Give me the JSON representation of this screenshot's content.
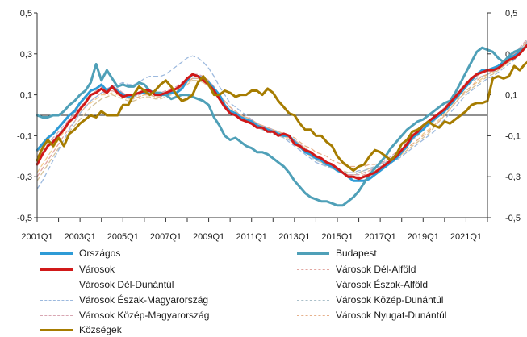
{
  "chart_data": {
    "type": "line",
    "title": "",
    "xlabel": "",
    "ylabel": "",
    "ylim": [
      -0.5,
      0.5
    ],
    "y_ticks": [
      "0,5",
      "0,3",
      "0,1",
      "-0,1",
      "-0,3",
      "-0,5"
    ],
    "y_tick_values": [
      0.5,
      0.3,
      0.1,
      -0.1,
      -0.3,
      -0.5
    ],
    "x_tick_labels": [
      "2001Q1",
      "2003Q1",
      "2005Q1",
      "2007Q1",
      "2009Q1",
      "2011Q1",
      "2013Q1",
      "2015Q1",
      "2017Q1",
      "2019Q1",
      "2021Q1"
    ],
    "x_start": "2001Q1",
    "x_end": "2022Q1",
    "grid": false,
    "legend_position": "bottom",
    "series": [
      {
        "name": "Országos",
        "color": "#2E9BD6",
        "style": "solid",
        "bold": true,
        "values": [
          -0.17,
          -0.14,
          -0.11,
          -0.09,
          -0.06,
          -0.03,
          0.0,
          0.02,
          0.06,
          0.09,
          0.12,
          0.13,
          0.15,
          0.12,
          0.14,
          0.12,
          0.1,
          0.09,
          0.1,
          0.11,
          0.11,
          0.12,
          0.11,
          0.1,
          0.1,
          0.11,
          0.11,
          0.13,
          0.17,
          0.2,
          0.19,
          0.18,
          0.16,
          0.13,
          0.1,
          0.05,
          0.02,
          0.01,
          -0.01,
          -0.02,
          -0.03,
          -0.05,
          -0.06,
          -0.07,
          -0.08,
          -0.09,
          -0.1,
          -0.1,
          -0.13,
          -0.15,
          -0.18,
          -0.19,
          -0.21,
          -0.22,
          -0.24,
          -0.25,
          -0.27,
          -0.28,
          -0.3,
          -0.32,
          -0.32,
          -0.32,
          -0.31,
          -0.29,
          -0.27,
          -0.25,
          -0.23,
          -0.21,
          -0.18,
          -0.15,
          -0.11,
          -0.09,
          -0.07,
          -0.04,
          -0.02,
          0.0,
          0.02,
          0.05,
          0.08,
          0.11,
          0.14,
          0.17,
          0.2,
          0.22,
          0.22,
          0.23,
          0.24,
          0.26,
          0.28,
          0.29,
          0.31,
          0.33,
          0.35,
          0.37
        ]
      },
      {
        "name": "Budapest",
        "color": "#4FA0B8",
        "style": "solid",
        "bold": true,
        "values": [
          0.0,
          -0.01,
          -0.01,
          0.0,
          0.0,
          0.02,
          0.05,
          0.07,
          0.1,
          0.12,
          0.16,
          0.25,
          0.17,
          0.22,
          0.18,
          0.14,
          0.15,
          0.14,
          0.14,
          0.16,
          0.15,
          0.12,
          0.11,
          0.11,
          0.1,
          0.08,
          0.09,
          0.1,
          0.1,
          0.09,
          0.08,
          0.07,
          0.05,
          -0.01,
          -0.05,
          -0.1,
          -0.12,
          -0.11,
          -0.13,
          -0.15,
          -0.16,
          -0.18,
          -0.18,
          -0.19,
          -0.21,
          -0.23,
          -0.25,
          -0.28,
          -0.32,
          -0.35,
          -0.38,
          -0.4,
          -0.41,
          -0.42,
          -0.42,
          -0.43,
          -0.44,
          -0.44,
          -0.42,
          -0.4,
          -0.37,
          -0.33,
          -0.29,
          -0.26,
          -0.23,
          -0.2,
          -0.16,
          -0.13,
          -0.1,
          -0.07,
          -0.05,
          -0.03,
          -0.02,
          0.0,
          0.02,
          0.04,
          0.06,
          0.07,
          0.11,
          0.16,
          0.21,
          0.26,
          0.31,
          0.33,
          0.32,
          0.31,
          0.28,
          0.26,
          0.29,
          0.31,
          0.32,
          0.33,
          0.35,
          0.36
        ]
      },
      {
        "name": "Városok",
        "color": "#D11919",
        "style": "solid",
        "bold": true,
        "values": [
          -0.24,
          -0.19,
          -0.15,
          -0.13,
          -0.1,
          -0.07,
          -0.03,
          -0.01,
          0.03,
          0.06,
          0.1,
          0.11,
          0.13,
          0.11,
          0.14,
          0.11,
          0.09,
          0.1,
          0.1,
          0.11,
          0.12,
          0.12,
          0.1,
          0.1,
          0.11,
          0.12,
          0.13,
          0.15,
          0.18,
          0.2,
          0.19,
          0.17,
          0.15,
          0.12,
          0.08,
          0.04,
          0.01,
          0.0,
          -0.02,
          -0.03,
          -0.04,
          -0.06,
          -0.06,
          -0.08,
          -0.08,
          -0.1,
          -0.09,
          -0.1,
          -0.14,
          -0.15,
          -0.17,
          -0.18,
          -0.2,
          -0.21,
          -0.23,
          -0.24,
          -0.26,
          -0.28,
          -0.3,
          -0.3,
          -0.31,
          -0.3,
          -0.29,
          -0.28,
          -0.26,
          -0.24,
          -0.22,
          -0.2,
          -0.17,
          -0.14,
          -0.1,
          -0.08,
          -0.05,
          -0.03,
          -0.01,
          0.01,
          0.03,
          0.06,
          0.09,
          0.12,
          0.15,
          0.18,
          0.2,
          0.21,
          0.22,
          0.22,
          0.23,
          0.25,
          0.27,
          0.28,
          0.3,
          0.33,
          0.36,
          0.4
        ]
      },
      {
        "name": "Városok Dél-Alföld",
        "color": "#E2A6A0",
        "style": "dashed",
        "bold": false,
        "values": [
          -0.3,
          -0.26,
          -0.22,
          -0.18,
          -0.14,
          -0.1,
          -0.06,
          -0.03,
          0.01,
          0.04,
          0.07,
          0.09,
          0.11,
          0.11,
          0.12,
          0.11,
          0.1,
          0.09,
          0.09,
          0.1,
          0.11,
          0.11,
          0.1,
          0.1,
          0.11,
          0.12,
          0.13,
          0.15,
          0.17,
          0.18,
          0.18,
          0.17,
          0.15,
          0.12,
          0.08,
          0.05,
          0.02,
          0.01,
          -0.01,
          -0.02,
          -0.03,
          -0.05,
          -0.06,
          -0.07,
          -0.08,
          -0.09,
          -0.1,
          -0.11,
          -0.13,
          -0.15,
          -0.17,
          -0.19,
          -0.2,
          -0.22,
          -0.23,
          -0.25,
          -0.27,
          -0.28,
          -0.29,
          -0.3,
          -0.3,
          -0.29,
          -0.28,
          -0.27,
          -0.26,
          -0.24,
          -0.22,
          -0.2,
          -0.18,
          -0.15,
          -0.12,
          -0.09,
          -0.07,
          -0.04,
          -0.02,
          0.0,
          0.03,
          0.06,
          0.09,
          0.12,
          0.15,
          0.17,
          0.19,
          0.21,
          0.22,
          0.23,
          0.24,
          0.26,
          0.28,
          0.3,
          0.32,
          0.35,
          0.38,
          0.42
        ]
      },
      {
        "name": "Városok Dél-Dunántúl",
        "color": "#F2CC8F",
        "style": "dashed",
        "bold": false,
        "values": [
          -0.28,
          -0.24,
          -0.2,
          -0.16,
          -0.12,
          -0.08,
          -0.04,
          -0.01,
          0.02,
          0.04,
          0.06,
          0.08,
          0.1,
          0.1,
          0.11,
          0.1,
          0.09,
          0.08,
          0.08,
          0.09,
          0.1,
          0.1,
          0.09,
          0.09,
          0.1,
          0.11,
          0.12,
          0.14,
          0.16,
          0.17,
          0.17,
          0.16,
          0.14,
          0.11,
          0.08,
          0.05,
          0.02,
          0.01,
          0.0,
          -0.02,
          -0.03,
          -0.05,
          -0.06,
          -0.07,
          -0.08,
          -0.09,
          -0.1,
          -0.12,
          -0.14,
          -0.16,
          -0.18,
          -0.2,
          -0.21,
          -0.23,
          -0.24,
          -0.26,
          -0.27,
          -0.28,
          -0.29,
          -0.29,
          -0.29,
          -0.28,
          -0.27,
          -0.26,
          -0.25,
          -0.24,
          -0.22,
          -0.21,
          -0.19,
          -0.17,
          -0.14,
          -0.12,
          -0.09,
          -0.07,
          -0.05,
          -0.02,
          0.01,
          0.04,
          0.07,
          0.1,
          0.12,
          0.14,
          0.16,
          0.18,
          0.2,
          0.21,
          0.22,
          0.24,
          0.26,
          0.28,
          0.31,
          0.34,
          0.37,
          0.41
        ]
      },
      {
        "name": "Városok Észak-Alföld",
        "color": "#D6C29A",
        "style": "dashed",
        "bold": false,
        "values": [
          -0.32,
          -0.28,
          -0.24,
          -0.2,
          -0.16,
          -0.12,
          -0.08,
          -0.05,
          -0.02,
          0.01,
          0.04,
          0.06,
          0.08,
          0.09,
          0.1,
          0.09,
          0.08,
          0.07,
          0.07,
          0.08,
          0.09,
          0.09,
          0.08,
          0.08,
          0.09,
          0.1,
          0.11,
          0.13,
          0.15,
          0.17,
          0.17,
          0.16,
          0.14,
          0.11,
          0.08,
          0.05,
          0.03,
          0.01,
          0.0,
          -0.01,
          -0.02,
          -0.04,
          -0.05,
          -0.06,
          -0.07,
          -0.08,
          -0.09,
          -0.1,
          -0.12,
          -0.14,
          -0.16,
          -0.18,
          -0.2,
          -0.22,
          -0.23,
          -0.25,
          -0.26,
          -0.27,
          -0.28,
          -0.28,
          -0.28,
          -0.27,
          -0.26,
          -0.26,
          -0.25,
          -0.24,
          -0.23,
          -0.21,
          -0.19,
          -0.17,
          -0.15,
          -0.13,
          -0.11,
          -0.09,
          -0.06,
          -0.03,
          0.0,
          0.03,
          0.06,
          0.09,
          0.11,
          0.13,
          0.15,
          0.17,
          0.19,
          0.2,
          0.22,
          0.24,
          0.26,
          0.28,
          0.31,
          0.34,
          0.38,
          0.42
        ]
      },
      {
        "name": "Városok Észak-Magyarország",
        "color": "#9CB9DE",
        "style": "dashed",
        "bold": false,
        "values": [
          -0.36,
          -0.32,
          -0.27,
          -0.22,
          -0.17,
          -0.12,
          -0.07,
          -0.03,
          0.01,
          0.04,
          0.07,
          0.09,
          0.11,
          0.12,
          0.14,
          0.15,
          0.16,
          0.15,
          0.15,
          0.16,
          0.18,
          0.19,
          0.19,
          0.19,
          0.2,
          0.22,
          0.24,
          0.26,
          0.28,
          0.29,
          0.28,
          0.26,
          0.23,
          0.19,
          0.14,
          0.1,
          0.06,
          0.04,
          0.02,
          0.0,
          -0.02,
          -0.04,
          -0.05,
          -0.06,
          -0.07,
          -0.09,
          -0.11,
          -0.13,
          -0.15,
          -0.17,
          -0.19,
          -0.21,
          -0.23,
          -0.24,
          -0.25,
          -0.26,
          -0.27,
          -0.28,
          -0.28,
          -0.28,
          -0.27,
          -0.27,
          -0.26,
          -0.26,
          -0.25,
          -0.24,
          -0.23,
          -0.22,
          -0.2,
          -0.18,
          -0.16,
          -0.14,
          -0.12,
          -0.1,
          -0.08,
          -0.05,
          -0.02,
          0.01,
          0.04,
          0.07,
          0.1,
          0.12,
          0.14,
          0.16,
          0.18,
          0.19,
          0.21,
          0.23,
          0.25,
          0.27,
          0.3,
          0.34,
          0.38,
          0.43
        ]
      },
      {
        "name": "Városok Közép-Dunántúl",
        "color": "#A9BFC9",
        "style": "dashed",
        "bold": false,
        "values": [
          -0.22,
          -0.19,
          -0.15,
          -0.12,
          -0.09,
          -0.06,
          -0.03,
          0.0,
          0.03,
          0.06,
          0.09,
          0.11,
          0.13,
          0.12,
          0.13,
          0.12,
          0.1,
          0.09,
          0.09,
          0.1,
          0.11,
          0.11,
          0.1,
          0.1,
          0.11,
          0.12,
          0.13,
          0.15,
          0.17,
          0.18,
          0.18,
          0.17,
          0.15,
          0.12,
          0.09,
          0.05,
          0.02,
          0.0,
          -0.02,
          -0.03,
          -0.04,
          -0.06,
          -0.07,
          -0.08,
          -0.09,
          -0.1,
          -0.11,
          -0.12,
          -0.14,
          -0.16,
          -0.18,
          -0.2,
          -0.22,
          -0.23,
          -0.25,
          -0.26,
          -0.27,
          -0.28,
          -0.29,
          -0.29,
          -0.28,
          -0.27,
          -0.26,
          -0.25,
          -0.24,
          -0.23,
          -0.21,
          -0.19,
          -0.17,
          -0.15,
          -0.12,
          -0.1,
          -0.07,
          -0.05,
          -0.03,
          0.0,
          0.02,
          0.05,
          0.08,
          0.11,
          0.14,
          0.16,
          0.18,
          0.19,
          0.2,
          0.21,
          0.23,
          0.25,
          0.27,
          0.29,
          0.32,
          0.35,
          0.38,
          0.41
        ]
      },
      {
        "name": "Városok Közép-Magyarország",
        "color": "#D8A6B2",
        "style": "dashed",
        "bold": false,
        "values": [
          -0.2,
          -0.17,
          -0.14,
          -0.11,
          -0.08,
          -0.05,
          -0.02,
          0.01,
          0.04,
          0.07,
          0.1,
          0.12,
          0.14,
          0.13,
          0.14,
          0.13,
          0.11,
          0.1,
          0.1,
          0.11,
          0.12,
          0.12,
          0.11,
          0.11,
          0.12,
          0.13,
          0.14,
          0.16,
          0.18,
          0.2,
          0.2,
          0.19,
          0.17,
          0.14,
          0.1,
          0.07,
          0.04,
          0.02,
          0.0,
          -0.01,
          -0.02,
          -0.04,
          -0.05,
          -0.06,
          -0.07,
          -0.08,
          -0.09,
          -0.1,
          -0.12,
          -0.14,
          -0.16,
          -0.18,
          -0.2,
          -0.22,
          -0.23,
          -0.25,
          -0.26,
          -0.28,
          -0.29,
          -0.29,
          -0.29,
          -0.28,
          -0.27,
          -0.26,
          -0.24,
          -0.22,
          -0.2,
          -0.18,
          -0.16,
          -0.13,
          -0.1,
          -0.08,
          -0.06,
          -0.03,
          -0.01,
          0.01,
          0.04,
          0.07,
          0.1,
          0.13,
          0.16,
          0.18,
          0.2,
          0.21,
          0.22,
          0.23,
          0.24,
          0.26,
          0.28,
          0.3,
          0.33,
          0.36,
          0.39,
          0.43
        ]
      },
      {
        "name": "Városok Nyugat-Dunántúl",
        "color": "#E6B08A",
        "style": "dashed",
        "bold": false,
        "values": [
          -0.18,
          -0.15,
          -0.12,
          -0.09,
          -0.06,
          -0.03,
          0.0,
          0.03,
          0.06,
          0.08,
          0.1,
          0.12,
          0.13,
          0.12,
          0.13,
          0.11,
          0.09,
          0.08,
          0.08,
          0.09,
          0.1,
          0.1,
          0.09,
          0.09,
          0.1,
          0.11,
          0.12,
          0.14,
          0.16,
          0.18,
          0.18,
          0.17,
          0.15,
          0.13,
          0.1,
          0.07,
          0.04,
          0.02,
          0.0,
          -0.01,
          -0.02,
          -0.04,
          -0.05,
          -0.06,
          -0.07,
          -0.08,
          -0.09,
          -0.1,
          -0.11,
          -0.13,
          -0.15,
          -0.16,
          -0.18,
          -0.19,
          -0.2,
          -0.22,
          -0.23,
          -0.24,
          -0.25,
          -0.25,
          -0.25,
          -0.25,
          -0.24,
          -0.24,
          -0.23,
          -0.22,
          -0.21,
          -0.2,
          -0.18,
          -0.16,
          -0.14,
          -0.12,
          -0.1,
          -0.08,
          -0.05,
          -0.03,
          0.0,
          0.03,
          0.06,
          0.09,
          0.12,
          0.14,
          0.17,
          0.19,
          0.2,
          0.22,
          0.23,
          0.25,
          0.27,
          0.29,
          0.32,
          0.35,
          0.38,
          0.42
        ]
      },
      {
        "name": "Községek",
        "color": "#A67C00",
        "style": "solid",
        "bold": true,
        "values": [
          -0.22,
          -0.16,
          -0.12,
          -0.15,
          -0.11,
          -0.15,
          -0.09,
          -0.07,
          -0.04,
          -0.02,
          0.0,
          -0.01,
          0.02,
          0.0,
          0.0,
          0.0,
          0.05,
          0.05,
          0.1,
          0.14,
          0.12,
          0.1,
          0.12,
          0.15,
          0.17,
          0.14,
          0.1,
          0.07,
          0.08,
          0.1,
          0.16,
          0.19,
          0.15,
          0.1,
          0.1,
          0.12,
          0.11,
          0.09,
          0.1,
          0.1,
          0.12,
          0.12,
          0.1,
          0.13,
          0.11,
          0.07,
          0.04,
          0.01,
          0.0,
          -0.04,
          -0.07,
          -0.07,
          -0.1,
          -0.1,
          -0.13,
          -0.15,
          -0.2,
          -0.23,
          -0.25,
          -0.27,
          -0.25,
          -0.24,
          -0.2,
          -0.17,
          -0.18,
          -0.2,
          -0.22,
          -0.19,
          -0.14,
          -0.12,
          -0.08,
          -0.07,
          -0.05,
          -0.03,
          -0.05,
          -0.06,
          -0.03,
          -0.04,
          -0.02,
          0.0,
          0.02,
          0.05,
          0.06,
          0.06,
          0.07,
          0.18,
          0.19,
          0.18,
          0.19,
          0.24,
          0.22,
          0.25,
          0.27,
          0.34
        ]
      }
    ]
  }
}
